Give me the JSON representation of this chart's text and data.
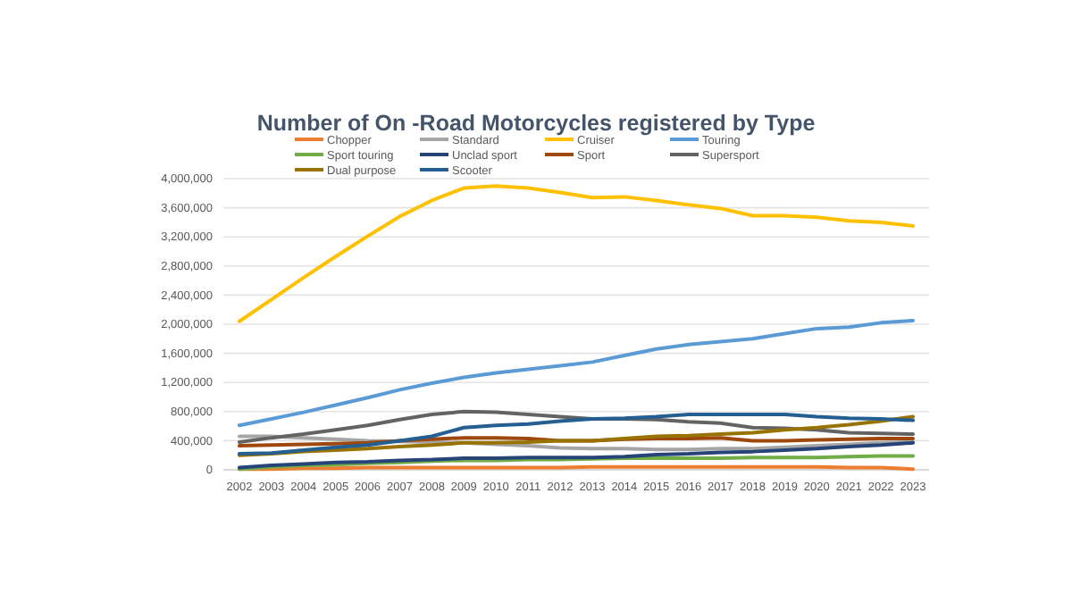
{
  "chart_data": {
    "type": "line",
    "title": "Number of On -Road Motorcycles registered by Type",
    "categories": [
      "2002",
      "2003",
      "2004",
      "2005",
      "2006",
      "2007",
      "2008",
      "2009",
      "2010",
      "2011",
      "2012",
      "2013",
      "2014",
      "2015",
      "2016",
      "2017",
      "2018",
      "2019",
      "2020",
      "2021",
      "2022",
      "2023"
    ],
    "series": [
      {
        "name": "Chopper",
        "color": "#ed7d31",
        "values": [
          10000,
          10000,
          20000,
          20000,
          30000,
          30000,
          30000,
          30000,
          30000,
          30000,
          30000,
          40000,
          40000,
          40000,
          40000,
          40000,
          40000,
          40000,
          40000,
          30000,
          30000,
          10000
        ]
      },
      {
        "name": "Standard",
        "color": "#a5a5a5",
        "values": [
          460000,
          460000,
          440000,
          420000,
          400000,
          390000,
          380000,
          370000,
          350000,
          330000,
          300000,
          290000,
          290000,
          280000,
          280000,
          290000,
          290000,
          310000,
          330000,
          350000,
          370000,
          380000
        ]
      },
      {
        "name": "Cruiser",
        "color": "#ffc000",
        "values": [
          2040000,
          2340000,
          2640000,
          2930000,
          3210000,
          3480000,
          3700000,
          3870000,
          3900000,
          3870000,
          3810000,
          3740000,
          3750000,
          3700000,
          3640000,
          3590000,
          3490000,
          3490000,
          3470000,
          3420000,
          3400000,
          3350000
        ]
      },
      {
        "name": "Touring",
        "color": "#5b9bd5",
        "values": [
          610000,
          700000,
          790000,
          890000,
          990000,
          1100000,
          1190000,
          1270000,
          1330000,
          1380000,
          1430000,
          1480000,
          1570000,
          1660000,
          1720000,
          1760000,
          1800000,
          1870000,
          1940000,
          1960000,
          2020000,
          2050000
        ]
      },
      {
        "name": "Sport touring",
        "color": "#70ad47",
        "values": [
          10000,
          40000,
          60000,
          70000,
          90000,
          100000,
          120000,
          130000,
          130000,
          140000,
          140000,
          150000,
          160000,
          160000,
          160000,
          160000,
          170000,
          170000,
          170000,
          180000,
          190000,
          190000
        ]
      },
      {
        "name": "Unclad sport",
        "color": "#264478",
        "values": [
          30000,
          60000,
          80000,
          100000,
          110000,
          130000,
          140000,
          160000,
          160000,
          170000,
          170000,
          170000,
          180000,
          210000,
          220000,
          240000,
          250000,
          270000,
          290000,
          320000,
          340000,
          370000
        ]
      },
      {
        "name": "Sport",
        "color": "#9e480e",
        "values": [
          330000,
          340000,
          350000,
          360000,
          370000,
          400000,
          420000,
          440000,
          440000,
          430000,
          400000,
          400000,
          420000,
          430000,
          430000,
          440000,
          400000,
          400000,
          410000,
          420000,
          430000,
          430000
        ]
      },
      {
        "name": "Supersport",
        "color": "#636363",
        "values": [
          380000,
          440000,
          490000,
          550000,
          610000,
          690000,
          760000,
          800000,
          790000,
          760000,
          730000,
          700000,
          700000,
          690000,
          660000,
          640000,
          580000,
          570000,
          550000,
          510000,
          500000,
          490000
        ]
      },
      {
        "name": "Dual purpose",
        "color": "#997300",
        "values": [
          200000,
          220000,
          250000,
          270000,
          290000,
          320000,
          340000,
          370000,
          370000,
          380000,
          400000,
          400000,
          430000,
          460000,
          470000,
          490000,
          510000,
          550000,
          580000,
          620000,
          670000,
          730000
        ]
      },
      {
        "name": "Scooter",
        "color": "#255e91",
        "values": [
          220000,
          230000,
          270000,
          310000,
          340000,
          400000,
          460000,
          580000,
          610000,
          630000,
          670000,
          700000,
          710000,
          730000,
          760000,
          760000,
          760000,
          760000,
          730000,
          710000,
          700000,
          680000
        ]
      }
    ],
    "ylim": [
      0,
      4000000
    ],
    "yticks": [
      {
        "value": 0,
        "label": "0"
      },
      {
        "value": 400000,
        "label": "400,000"
      },
      {
        "value": 800000,
        "label": "800,000"
      },
      {
        "value": 1200000,
        "label": "1,200,000"
      },
      {
        "value": 1600000,
        "label": "1,600,000"
      },
      {
        "value": 2000000,
        "label": "2,000,000"
      },
      {
        "value": 2400000,
        "label": "2,400,000"
      },
      {
        "value": 2800000,
        "label": "2,800,000"
      },
      {
        "value": 3200000,
        "label": "3,200,000"
      },
      {
        "value": 3600000,
        "label": "3,600,000"
      },
      {
        "value": 4000000,
        "label": "4,000,000"
      }
    ],
    "grid": "y",
    "legend": "top",
    "marker": "none",
    "line_style": "solid"
  }
}
